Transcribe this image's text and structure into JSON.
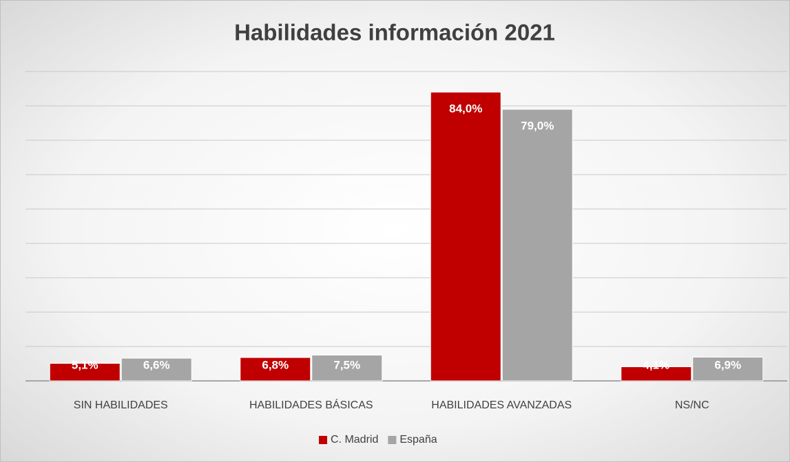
{
  "chart_data": {
    "type": "bar",
    "title": "Habilidades información 2021",
    "categories": [
      "SIN HABILIDADES",
      "HABILIDADES BÁSICAS",
      "HABILIDADES AVANZADAS",
      "NS/NC"
    ],
    "series": [
      {
        "name": "C. Madrid",
        "color": "#c00000",
        "values": [
          5.1,
          6.8,
          84.0,
          4.1
        ],
        "value_labels": [
          "5,1%",
          "6,8%",
          "84,0%",
          "4,1%"
        ]
      },
      {
        "name": "España",
        "color": "#a5a5a5",
        "values": [
          6.6,
          7.5,
          79.0,
          6.9
        ],
        "value_labels": [
          "6,6%",
          "7,5%",
          "79,0%",
          "6,9%"
        ]
      }
    ],
    "ylim": [
      0,
      90
    ],
    "yticks": [
      0,
      10,
      20,
      30,
      40,
      50,
      60,
      70,
      80,
      90
    ],
    "grid": true,
    "legend": "bottom"
  }
}
